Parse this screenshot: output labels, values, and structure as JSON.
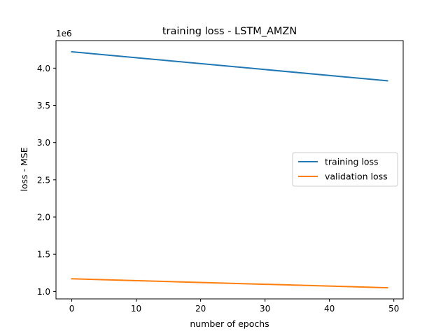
{
  "chart_data": {
    "type": "line",
    "title": "training loss - LSTM_AMZN",
    "xlabel": "number of epochs",
    "ylabel": "loss - MSE",
    "y_offset_label": "1e6",
    "xlim": [
      -2.45,
      51.45
    ],
    "ylim": [
      0.9,
      4.37
    ],
    "x_ticks": [
      0,
      10,
      20,
      30,
      40,
      50
    ],
    "y_ticks": [
      1.0,
      1.5,
      2.0,
      2.5,
      3.0,
      3.5,
      4.0
    ],
    "y_tick_labels": [
      "1.0",
      "1.5",
      "2.0",
      "2.5",
      "3.0",
      "3.5",
      "4.0"
    ],
    "grid": false,
    "legend_position": "center-right",
    "x": [
      0,
      49
    ],
    "series": [
      {
        "name": "training loss",
        "color": "#1f77b4",
        "values": [
          4.22,
          3.83
        ]
      },
      {
        "name": "validation loss",
        "color": "#ff7f0e",
        "values": [
          1.17,
          1.05
        ]
      }
    ]
  }
}
